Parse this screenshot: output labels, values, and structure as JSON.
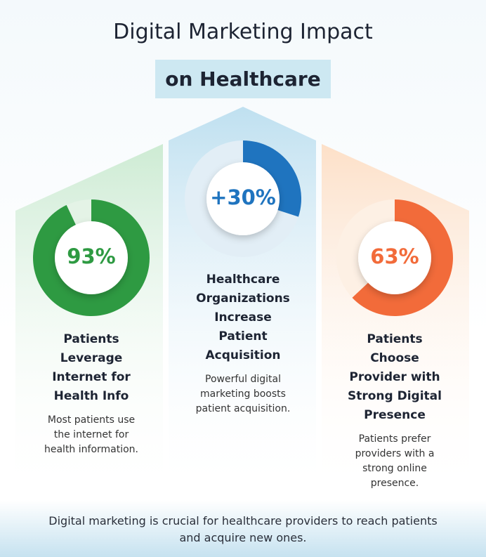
{
  "header": {
    "title": "Digital Marketing Impact",
    "subtitle": "on Healthcare"
  },
  "panels": [
    {
      "value": 93,
      "value_label": "93%",
      "color": "#2e9a42",
      "heading": "Patients Leverage Internet for Health Info",
      "text": "Most patients use the internet for health information."
    },
    {
      "value": 30,
      "value_label": "+30%",
      "color": "#1f74bf",
      "heading": "Healthcare Organizations Increase Patient Acquisition",
      "text": "Powerful digital marketing boosts patient acquisition."
    },
    {
      "value": 63,
      "value_label": "63%",
      "color": "#f26b3a",
      "heading": "Patients Choose Provider with Strong Digital Presence",
      "text": "Patients prefer providers with a strong online presence."
    }
  ],
  "footer": "Digital marketing is crucial for healthcare providers to reach patients and acquire new ones."
}
